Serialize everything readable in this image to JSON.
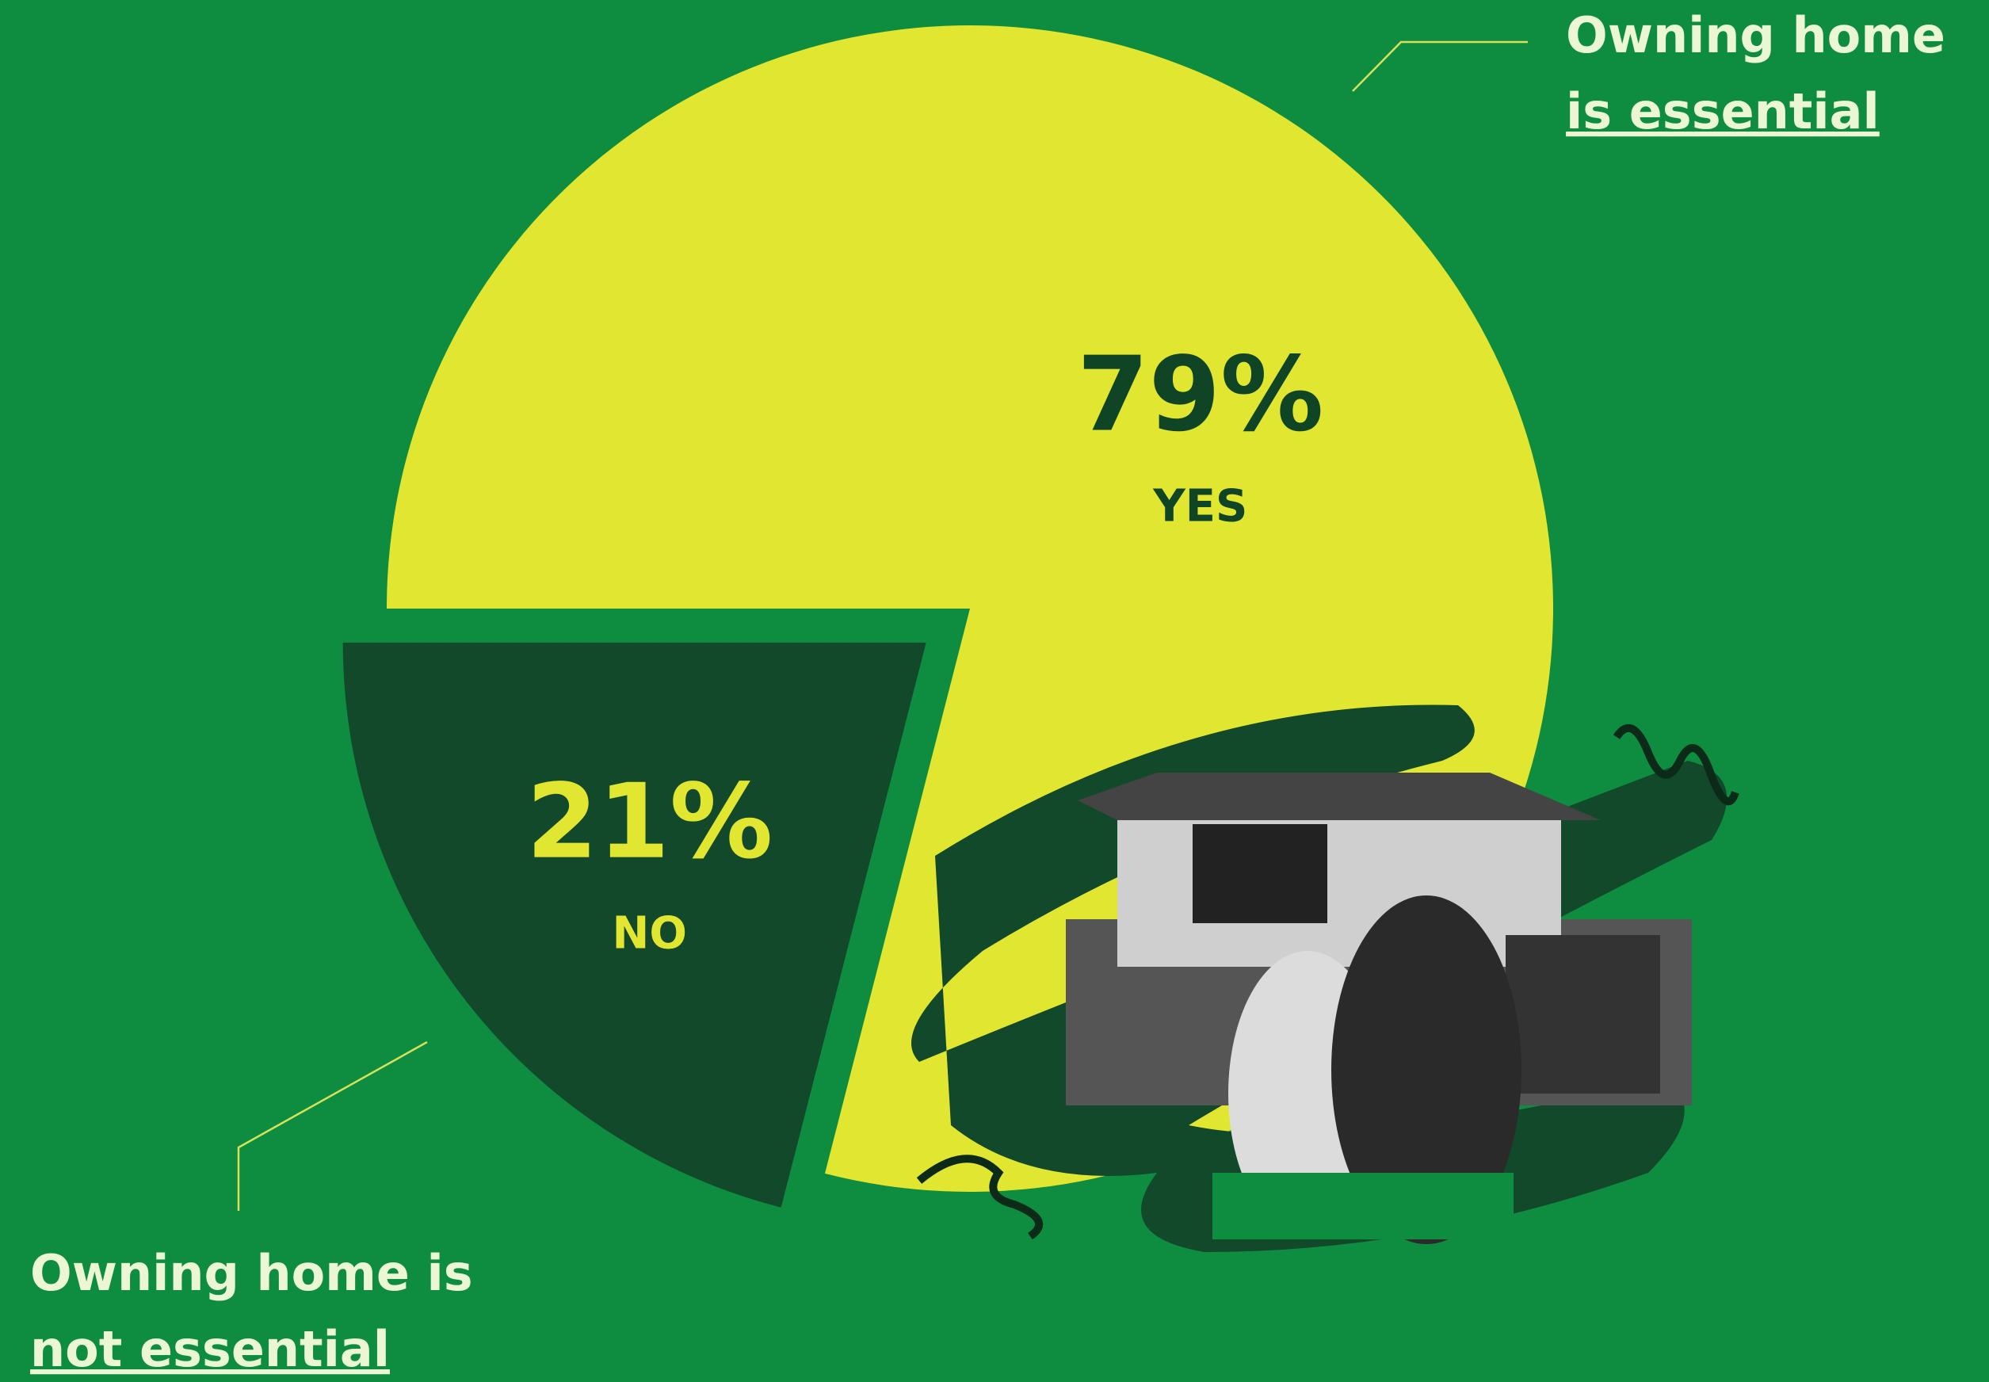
{
  "chart_data": {
    "type": "pie",
    "categories": [
      "YES",
      "NO"
    ],
    "values": [
      79,
      21
    ],
    "value_labels": [
      "79%",
      "21%"
    ],
    "colors": [
      "#e1e631",
      "#11492a"
    ],
    "label_colors": [
      "#0f4525",
      "#e1e631"
    ],
    "exploded": [
      false,
      true
    ],
    "callouts": [
      [
        "Owning home",
        "is essential"
      ],
      [
        "Owning home is",
        "not essential"
      ]
    ]
  }
}
